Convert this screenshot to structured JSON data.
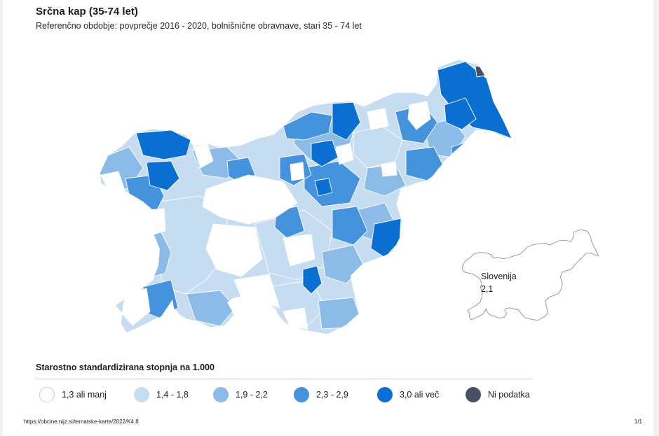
{
  "header": {
    "title": "Srčna kap (35-74 let)",
    "subtitle": "Referenčno obdobje: povprečje 2016 - 2020, bolnišnične obravnave, stari 35 - 74 let"
  },
  "inset": {
    "country": "Slovenija",
    "value": "2,1"
  },
  "legend": {
    "title": "Starostno standardizirana stopnja na 1.000",
    "classes": [
      {
        "label": "1,3 ali manj",
        "color": "#ffffff"
      },
      {
        "label": "1,4 - 1,8",
        "color": "#c6dcf1"
      },
      {
        "label": "1,9 - 2,2",
        "color": "#8cbbe8"
      },
      {
        "label": "2,3 - 2,9",
        "color": "#4593dc"
      },
      {
        "label": "3,0 ali več",
        "color": "#0a6fd1"
      },
      {
        "label": "Ni podatka",
        "color": "#4a5064"
      }
    ]
  },
  "footer": {
    "url": "https://obcine.nijz.si/tematske-karte/2022/K4.8",
    "page": "1/1"
  }
}
